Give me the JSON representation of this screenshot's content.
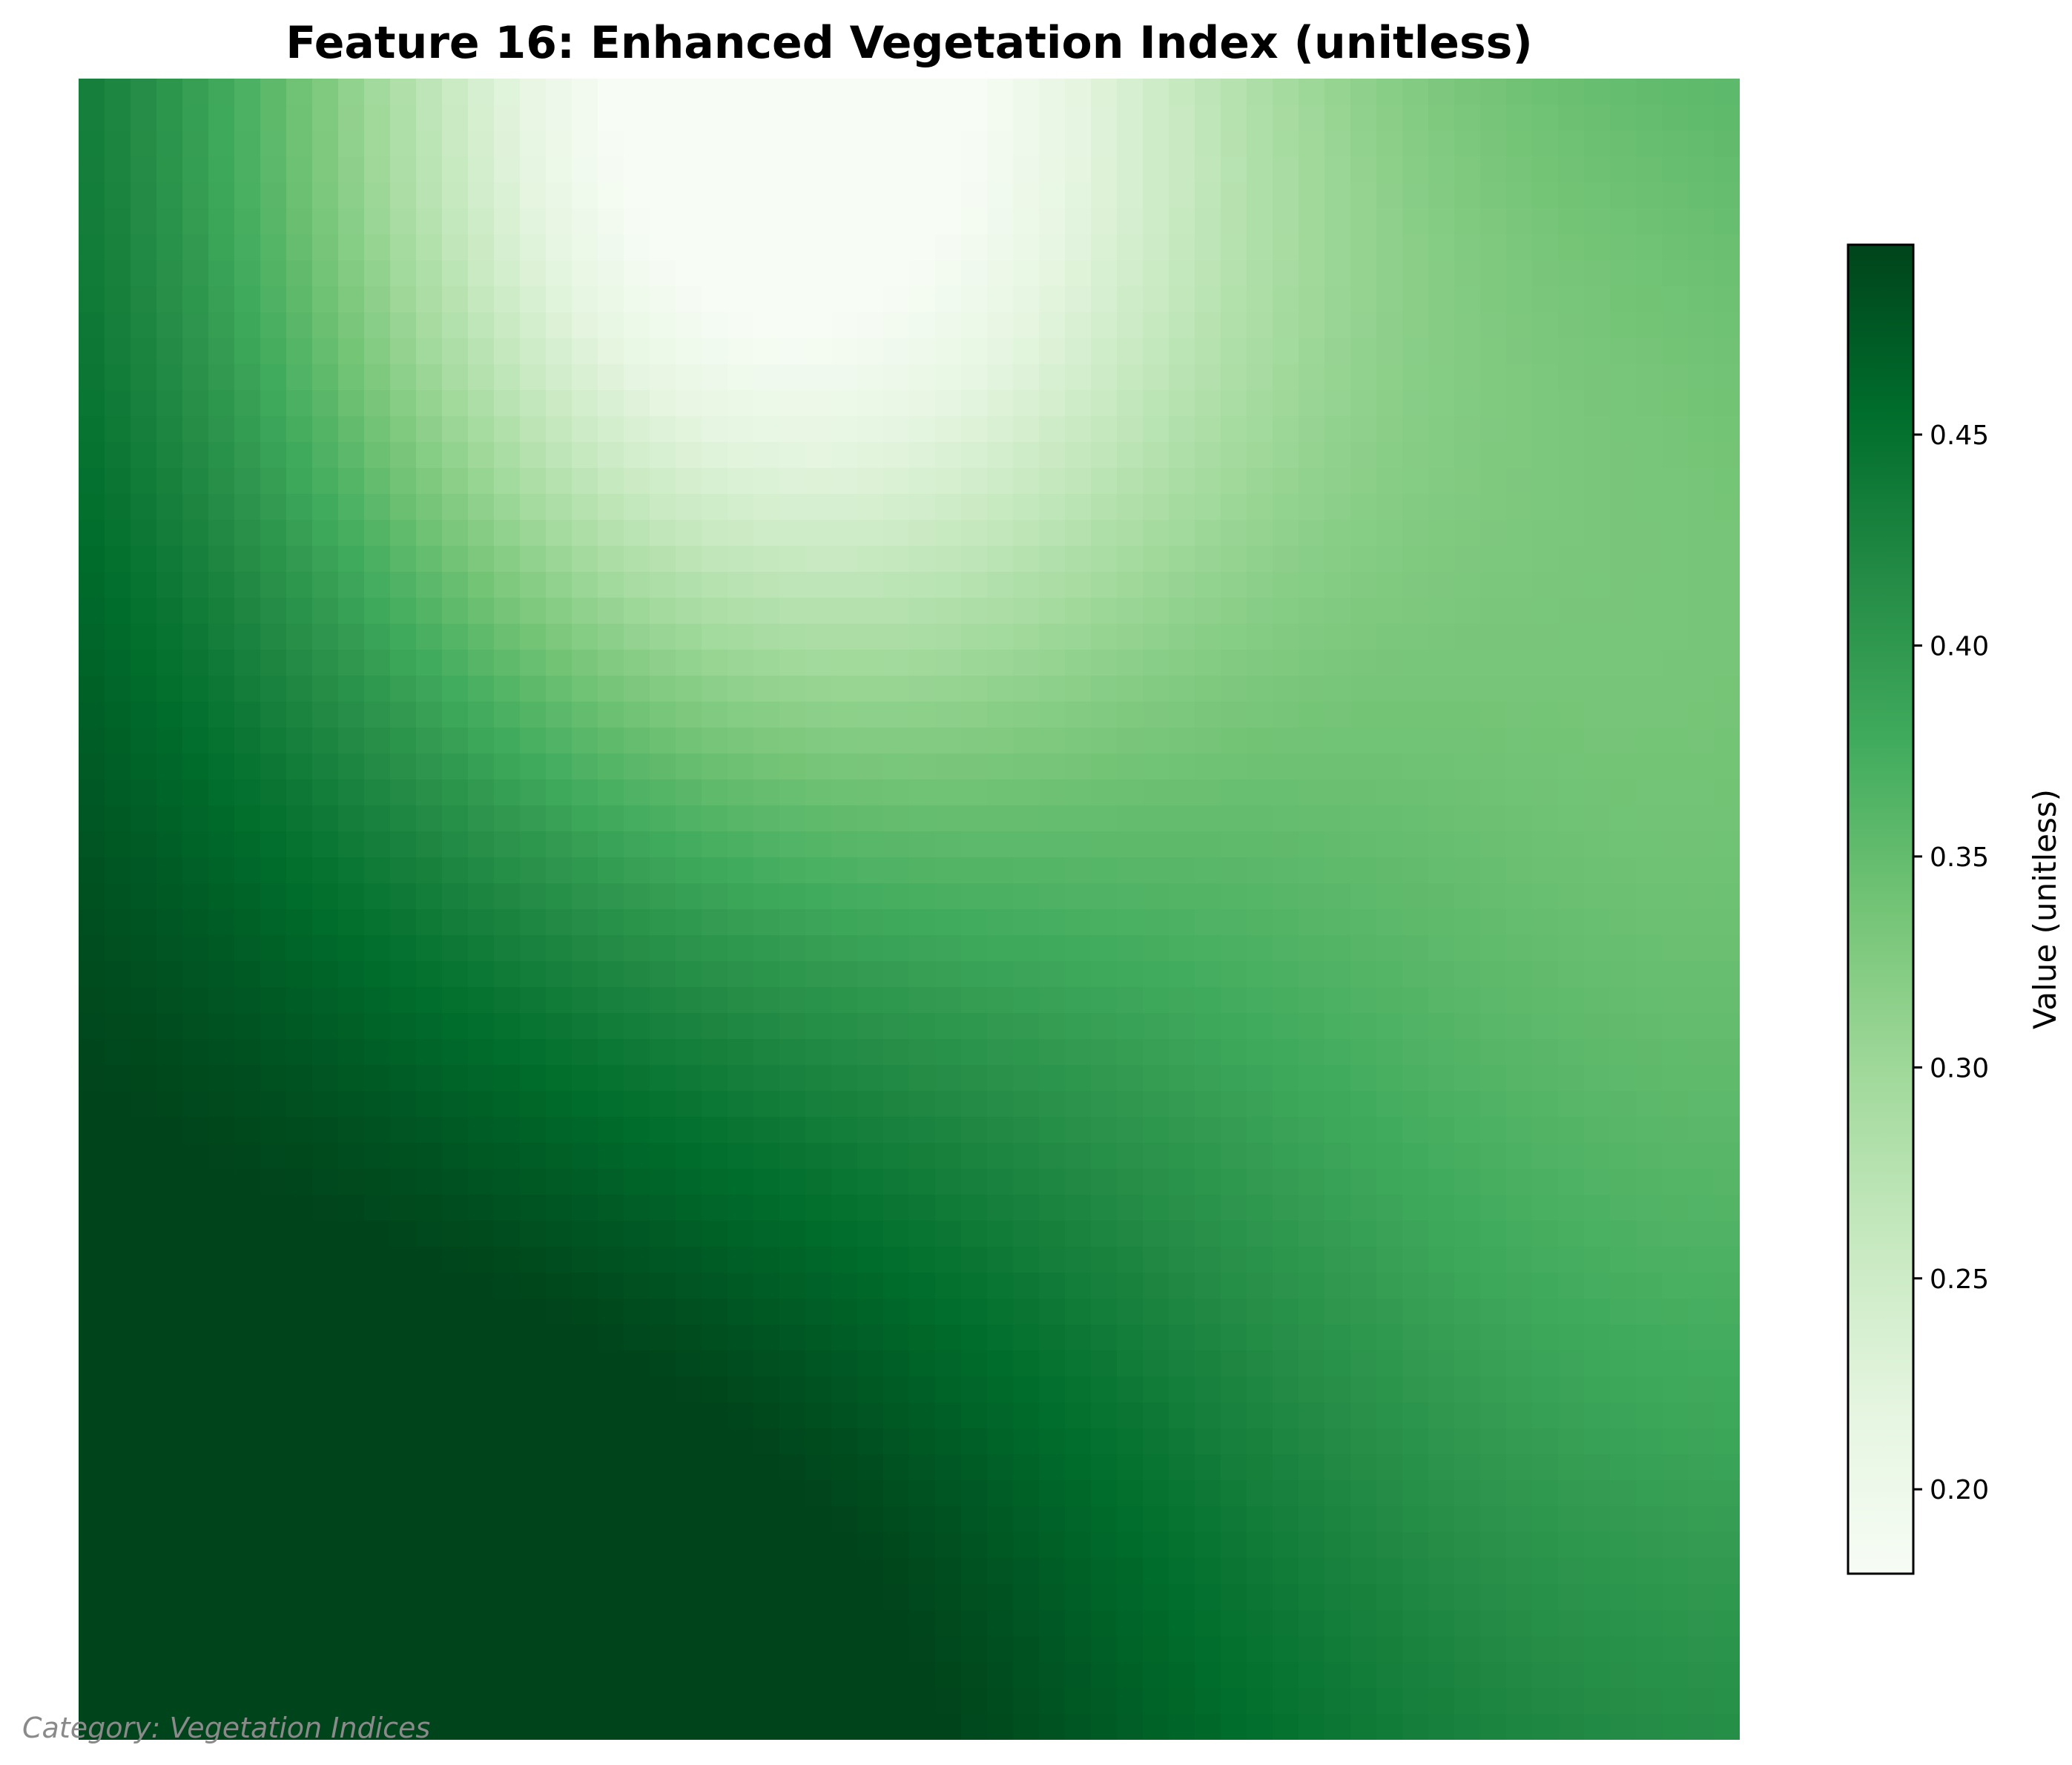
{
  "chart_data": {
    "type": "heatmap",
    "title": "Feature 16: Enhanced Vegetation Index (unitless)",
    "xlabel": "",
    "ylabel": "",
    "grid": false,
    "colormap": "Greens",
    "colormap_stops": [
      "#f7fcf5",
      "#e5f5e0",
      "#c7e9c0",
      "#a1d99b",
      "#74c476",
      "#41ab5d",
      "#238b45",
      "#006d2c",
      "#00441b"
    ],
    "value_range": [
      0.18,
      0.495
    ],
    "grid_size": [
      64,
      64
    ],
    "value_field": {
      "base": 0.5,
      "features": [
        {
          "kind": "low",
          "center": [
            0.4,
            0.0
          ],
          "sigma": [
            0.22,
            0.3
          ],
          "amplitude": -0.32
        },
        {
          "kind": "low",
          "center": [
            1.0,
            0.35
          ],
          "sigma": [
            0.35,
            0.6
          ],
          "amplitude": -0.16
        },
        {
          "kind": "high",
          "center": [
            0.32,
            0.97
          ],
          "sigma": [
            0.3,
            0.22
          ],
          "amplitude": 0.04
        }
      ]
    },
    "colorbar": {
      "label": "Value (unitless)",
      "ticks": [
        0.2,
        0.25,
        0.3,
        0.35,
        0.4,
        0.45
      ],
      "tick_labels": [
        "0.20",
        "0.25",
        "0.30",
        "0.35",
        "0.40",
        "0.45"
      ]
    },
    "annotation": "Category: Vegetation Indices"
  }
}
